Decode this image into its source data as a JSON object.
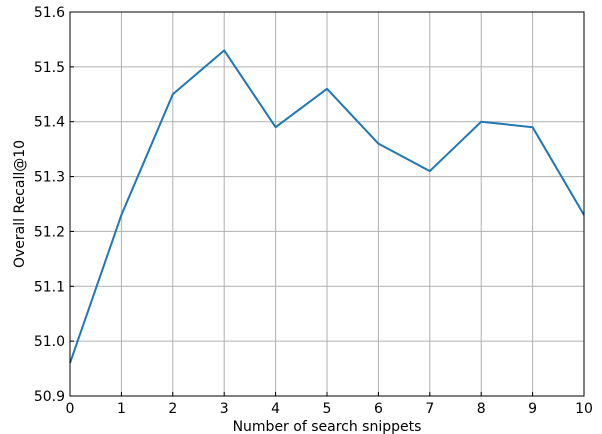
{
  "chart_data": {
    "type": "line",
    "title": "",
    "xlabel": "Number of search snippets",
    "ylabel": "Overall Recall@10",
    "x": [
      0,
      1,
      2,
      3,
      4,
      5,
      6,
      7,
      8,
      9,
      10
    ],
    "series": [
      {
        "values": [
          50.96,
          51.23,
          51.45,
          51.53,
          51.39,
          51.46,
          51.36,
          51.31,
          51.4,
          51.39,
          51.23
        ]
      }
    ],
    "xlim": [
      0,
      10
    ],
    "ylim": [
      50.9,
      51.6
    ],
    "xticks": [
      "0",
      "1",
      "2",
      "3",
      "4",
      "5",
      "6",
      "7",
      "8",
      "9",
      "10"
    ],
    "yticks": [
      "50.9",
      "51.0",
      "51.1",
      "51.2",
      "51.3",
      "51.4",
      "51.5",
      "51.6"
    ],
    "grid": true,
    "line_color": "#1f77b4",
    "grid_color": "#b0b0b0"
  }
}
